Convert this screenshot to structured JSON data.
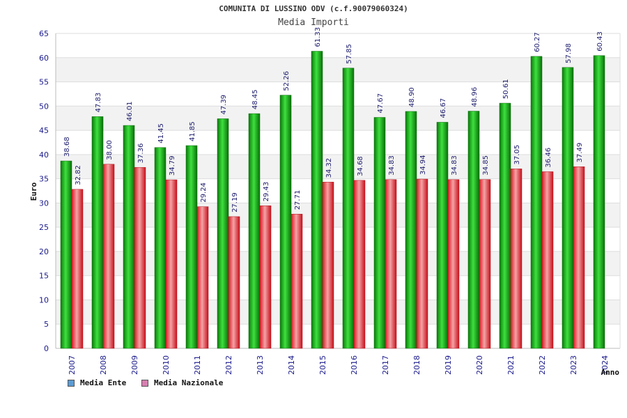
{
  "chart_data": {
    "type": "bar",
    "title": "COMUNITA DI LUSSINO ODV (c.f.90079060324)",
    "subtitle": "Media Importi",
    "xlabel": "Anno",
    "ylabel": "Euro",
    "ylim": [
      0,
      65
    ],
    "ytick_step": 5,
    "grid": true,
    "legend": "bottom-left",
    "categories": [
      "2007",
      "2008",
      "2009",
      "2010",
      "2011",
      "2012",
      "2013",
      "2014",
      "2015",
      "2016",
      "2017",
      "2018",
      "2019",
      "2020",
      "2021",
      "2022",
      "2023",
      "2024"
    ],
    "series": [
      {
        "name": "Media Ente",
        "legend_color": "#5b9bd5",
        "color": "#1fae1f",
        "values": [
          38.68,
          47.83,
          46.01,
          41.45,
          41.85,
          47.39,
          48.45,
          52.26,
          61.33,
          57.85,
          47.67,
          48.9,
          46.67,
          48.96,
          50.61,
          60.27,
          57.98,
          60.43
        ],
        "labels": [
          "38.68",
          "47.83",
          "46.01",
          "41.45",
          "41.85",
          "47.39",
          "48.45",
          "52.26",
          "61.33",
          "57.85",
          "47.67",
          "48.90",
          "46.67",
          "48.96",
          "50.61",
          "60.27",
          "57.98",
          "60.43"
        ]
      },
      {
        "name": "Media Nazionale",
        "legend_color": "#d67fb0",
        "color": "#e8303a",
        "values": [
          32.82,
          38.0,
          37.36,
          34.79,
          29.24,
          27.19,
          29.43,
          27.71,
          34.32,
          34.68,
          34.83,
          34.94,
          34.83,
          34.85,
          37.05,
          36.46,
          37.49,
          null
        ],
        "labels": [
          "32.82",
          "38.00",
          "37.36",
          "34.79",
          "29.24",
          "27.19",
          "29.43",
          "27.71",
          "34.32",
          "34.68",
          "34.83",
          "34.94",
          "34.83",
          "34.85",
          "37.05",
          "36.46",
          "37.49",
          ""
        ]
      }
    ]
  }
}
